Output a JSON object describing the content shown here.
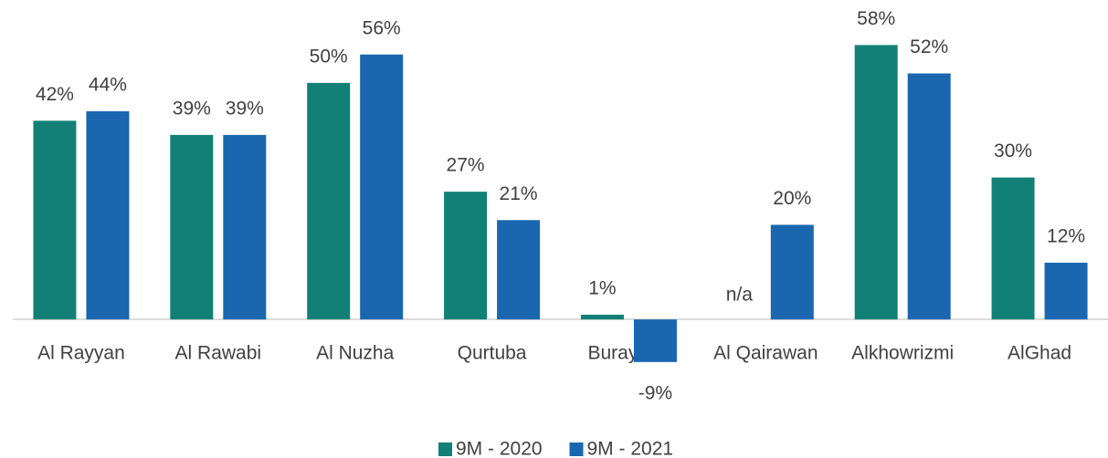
{
  "chart_data": {
    "type": "bar",
    "categories": [
      "Al Rayyan",
      "Al Rawabi",
      "Al Nuzha",
      "Qurtuba",
      "Buraydah",
      "Al Qairawan",
      "Alkhowrizmi",
      "AlGhad"
    ],
    "series": [
      {
        "name": "9M - 2020",
        "color": "#138077",
        "values": [
          42,
          39,
          50,
          27,
          1,
          null,
          58,
          30
        ],
        "value_labels": [
          "42%",
          "39%",
          "50%",
          "27%",
          "1%",
          "n/a",
          "58%",
          "30%"
        ]
      },
      {
        "name": "9M - 2021",
        "color": "#1a67b0",
        "values": [
          44,
          39,
          56,
          21,
          -9,
          20,
          52,
          12
        ],
        "value_labels": [
          "44%",
          "39%",
          "56%",
          "21%",
          "-9%",
          "20%",
          "52%",
          "12%"
        ]
      }
    ],
    "ylim": [
      -10,
      60
    ],
    "legend": "bottom"
  }
}
